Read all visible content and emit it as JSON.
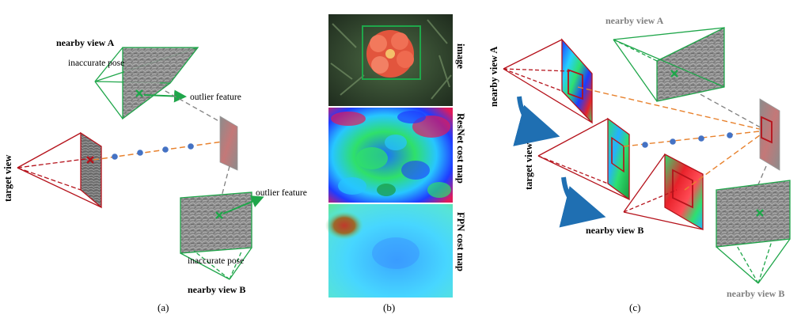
{
  "panel_a": {
    "nearby_view_a": "nearby view A",
    "inaccurate_pose_top": "inaccurate pose",
    "outlier_feature_top": "outlier feature",
    "target_view": "target view",
    "outlier_feature_bottom": "outlier feature",
    "inaccurate_pose_bottom": "inaccurate pose",
    "nearby_view_b": "nearby view B",
    "caption": "(a)"
  },
  "panel_b": {
    "label_image": "image",
    "label_resnet": "ResNet cost map",
    "label_fpn": "FPN cost map",
    "caption": "(b)"
  },
  "panel_c": {
    "nearby_view_a_gray": "nearby view A",
    "nearby_view_a_red": "nearby view A",
    "target_view": "target view",
    "nearby_view_b_black": "nearby view B",
    "nearby_view_b_gray": "nearby view B",
    "caption": "(c)"
  },
  "colors": {
    "green": "#1fa64a",
    "red": "#b5121b",
    "orange": "#e8822e",
    "blue_dot": "#4472c4",
    "gray_dash": "#7f7f7f",
    "arrow_blue": "#1f6fb2"
  }
}
